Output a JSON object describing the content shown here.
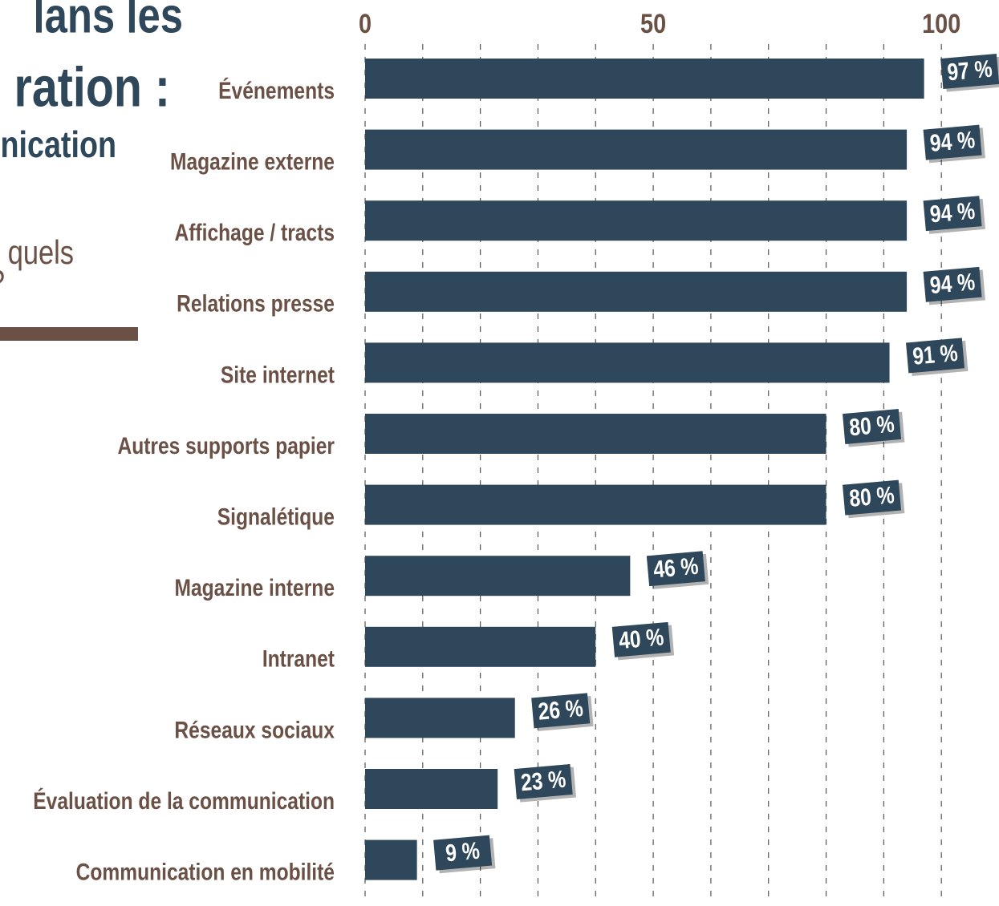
{
  "chart_data": {
    "type": "bar",
    "orientation": "horizontal",
    "title_lines": [
      "lans les",
      "ration :",
      "nication",
      "quels",
      "?"
    ],
    "categories": [
      "Événements",
      "Magazine externe",
      "Affichage / tracts",
      "Relations presse",
      "Site internet",
      "Autres supports papier",
      "Signalétique",
      "Magazine interne",
      "Intranet",
      "Réseaux sociaux",
      "Évaluation de la communication",
      "Communication en mobilité"
    ],
    "values": [
      97,
      94,
      94,
      94,
      91,
      80,
      80,
      46,
      40,
      26,
      23,
      9
    ],
    "value_labels": [
      "97 %",
      "94 %",
      "94 %",
      "94 %",
      "91 %",
      "80 %",
      "80 %",
      "46 %",
      "40 %",
      "26 %",
      "23 %",
      "9 %"
    ],
    "color": "#2e475a",
    "xlim": [
      0,
      110
    ],
    "xticks": [
      0,
      50,
      100
    ],
    "grid_x": [
      0,
      10,
      20,
      30,
      40,
      50,
      60,
      70,
      80,
      90,
      100
    ],
    "grid": true
  }
}
